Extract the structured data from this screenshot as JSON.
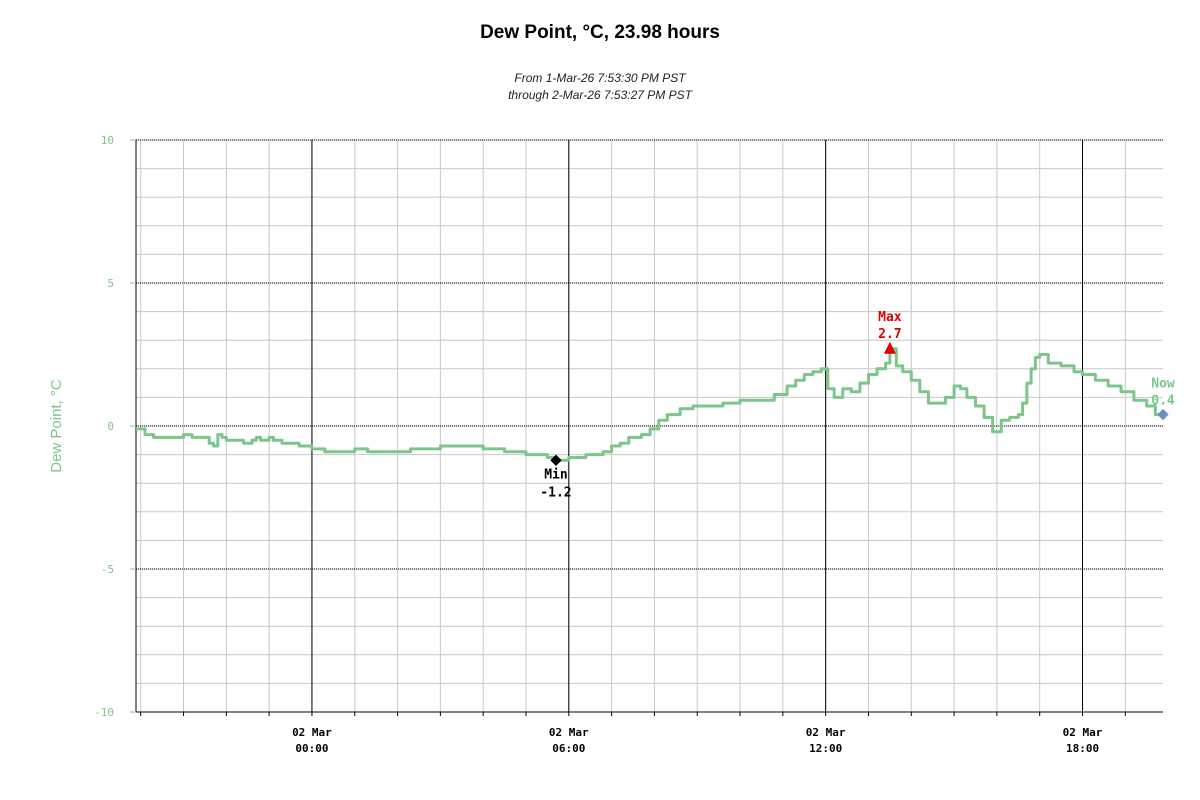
{
  "header": {
    "title": "Dew Point, °C, 23.98 hours",
    "subtitle_line1": "From 1-Mar-26 7:53:30 PM PST",
    "subtitle_line2": "through 2-Mar-26 7:53:27 PM PST"
  },
  "colors": {
    "series": "#7cc68c",
    "min": "#000000",
    "max": "#dd0000",
    "now": "#6f8fc0",
    "axis_text": "#7cc68c"
  },
  "chart_data": {
    "type": "line",
    "ylabel": "Dew Point, °C",
    "ylim": [
      -10,
      10
    ],
    "y_ticks": [
      10,
      5,
      0,
      -5,
      -10
    ],
    "x_range_hours": [
      19.89,
      43.88
    ],
    "x_ticks": [
      {
        "hour": 24,
        "line1": "02 Mar",
        "line2": "00:00"
      },
      {
        "hour": 30,
        "line1": "02 Mar",
        "line2": "06:00"
      },
      {
        "hour": 36,
        "line1": "02 Mar",
        "line2": "12:00"
      },
      {
        "hour": 42,
        "line1": "02 Mar",
        "line2": "18:00"
      }
    ],
    "series": [
      {
        "values": [
          [
            19.89,
            -0.1
          ],
          [
            20.1,
            -0.3
          ],
          [
            20.3,
            -0.4
          ],
          [
            20.8,
            -0.4
          ],
          [
            21.0,
            -0.3
          ],
          [
            21.2,
            -0.4
          ],
          [
            21.5,
            -0.4
          ],
          [
            21.6,
            -0.6
          ],
          [
            21.7,
            -0.7
          ],
          [
            21.8,
            -0.3
          ],
          [
            21.9,
            -0.4
          ],
          [
            22.0,
            -0.5
          ],
          [
            22.4,
            -0.6
          ],
          [
            22.6,
            -0.5
          ],
          [
            22.7,
            -0.4
          ],
          [
            22.8,
            -0.5
          ],
          [
            23.0,
            -0.4
          ],
          [
            23.1,
            -0.5
          ],
          [
            23.3,
            -0.6
          ],
          [
            23.7,
            -0.7
          ],
          [
            24.0,
            -0.8
          ],
          [
            24.3,
            -0.9
          ],
          [
            24.8,
            -0.9
          ],
          [
            25.0,
            -0.8
          ],
          [
            25.3,
            -0.9
          ],
          [
            26.0,
            -0.9
          ],
          [
            26.3,
            -0.8
          ],
          [
            26.8,
            -0.8
          ],
          [
            27.0,
            -0.7
          ],
          [
            27.5,
            -0.7
          ],
          [
            28.0,
            -0.8
          ],
          [
            28.5,
            -0.9
          ],
          [
            29.0,
            -1.0
          ],
          [
            29.5,
            -1.1
          ],
          [
            29.7,
            -1.2
          ],
          [
            30.0,
            -1.1
          ],
          [
            30.4,
            -1.0
          ],
          [
            30.8,
            -0.9
          ],
          [
            31.0,
            -0.7
          ],
          [
            31.2,
            -0.6
          ],
          [
            31.4,
            -0.4
          ],
          [
            31.7,
            -0.3
          ],
          [
            31.9,
            -0.1
          ],
          [
            32.1,
            0.2
          ],
          [
            32.3,
            0.4
          ],
          [
            32.6,
            0.6
          ],
          [
            32.9,
            0.7
          ],
          [
            33.3,
            0.7
          ],
          [
            33.6,
            0.8
          ],
          [
            34.0,
            0.9
          ],
          [
            34.5,
            0.9
          ],
          [
            34.8,
            1.1
          ],
          [
            35.1,
            1.4
          ],
          [
            35.3,
            1.6
          ],
          [
            35.5,
            1.8
          ],
          [
            35.7,
            1.9
          ],
          [
            35.9,
            2.0
          ],
          [
            36.05,
            1.3
          ],
          [
            36.2,
            1.0
          ],
          [
            36.4,
            1.3
          ],
          [
            36.6,
            1.2
          ],
          [
            36.8,
            1.5
          ],
          [
            37.0,
            1.8
          ],
          [
            37.2,
            2.0
          ],
          [
            37.4,
            2.2
          ],
          [
            37.5,
            2.7
          ],
          [
            37.65,
            2.1
          ],
          [
            37.8,
            1.9
          ],
          [
            38.0,
            1.6
          ],
          [
            38.2,
            1.2
          ],
          [
            38.4,
            0.8
          ],
          [
            38.6,
            0.8
          ],
          [
            38.8,
            1.0
          ],
          [
            39.0,
            1.4
          ],
          [
            39.15,
            1.3
          ],
          [
            39.3,
            1.0
          ],
          [
            39.5,
            0.7
          ],
          [
            39.7,
            0.3
          ],
          [
            39.9,
            -0.2
          ],
          [
            40.1,
            0.2
          ],
          [
            40.3,
            0.3
          ],
          [
            40.5,
            0.4
          ],
          [
            40.6,
            0.8
          ],
          [
            40.7,
            1.5
          ],
          [
            40.8,
            2.0
          ],
          [
            40.9,
            2.4
          ],
          [
            41.0,
            2.5
          ],
          [
            41.2,
            2.2
          ],
          [
            41.5,
            2.1
          ],
          [
            41.8,
            1.9
          ],
          [
            42.0,
            1.8
          ],
          [
            42.3,
            1.6
          ],
          [
            42.6,
            1.4
          ],
          [
            42.9,
            1.2
          ],
          [
            43.2,
            0.9
          ],
          [
            43.5,
            0.7
          ],
          [
            43.7,
            0.4
          ],
          [
            43.88,
            0.4
          ]
        ]
      }
    ],
    "annotations": {
      "min": {
        "hour": 29.7,
        "value": -1.2,
        "label": "Min",
        "value_label": "-1.2"
      },
      "max": {
        "hour": 37.5,
        "value": 2.7,
        "label": "Max",
        "value_label": "2.7"
      },
      "now": {
        "hour": 43.88,
        "value": 0.4,
        "label": "Now",
        "value_label": "0.4"
      }
    },
    "grid": true
  }
}
